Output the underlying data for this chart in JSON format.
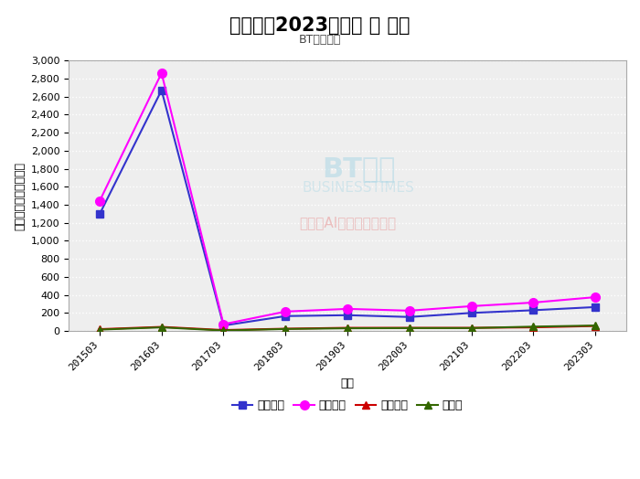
{
  "title": "黄山胶囊2023三季报 － 利润",
  "subtitle": "BT财经绘制",
  "xlabel": "项目",
  "ylabel": "数额（人民币百万元）",
  "watermark_bt": "BT财经",
  "watermark_en": "BUSINESSTIMES",
  "watermark_ai": "内容由AI生成，仅供参考",
  "x_labels": [
    "201503",
    "201603",
    "201703",
    "201803",
    "201903",
    "202003",
    "202103",
    "202203",
    "202303"
  ],
  "series": [
    {
      "name": "营业成本",
      "values": [
        1295,
        2670,
        60,
        165,
        175,
        155,
        200,
        230,
        265
      ],
      "color": "#3333cc",
      "marker": "s",
      "linewidth": 1.5,
      "markersize": 6
    },
    {
      "name": "营业收入",
      "values": [
        1440,
        2860,
        75,
        215,
        245,
        225,
        275,
        315,
        375
      ],
      "color": "#ff00ff",
      "marker": "o",
      "linewidth": 1.5,
      "markersize": 7
    },
    {
      "name": "营业利润",
      "values": [
        20,
        45,
        10,
        25,
        35,
        35,
        35,
        40,
        55
      ],
      "color": "#cc0000",
      "marker": "^",
      "linewidth": 1.5,
      "markersize": 6
    },
    {
      "name": "净利润",
      "values": [
        15,
        40,
        5,
        22,
        30,
        32,
        32,
        48,
        60
      ],
      "color": "#336600",
      "marker": "^",
      "linewidth": 1.5,
      "markersize": 6
    }
  ],
  "ylim": [
    0,
    3000
  ],
  "yticks": [
    0,
    200,
    400,
    600,
    800,
    1000,
    1200,
    1400,
    1600,
    1800,
    2000,
    2200,
    2400,
    2600,
    2800,
    3000
  ],
  "bg_color": "#ffffff",
  "plot_bg_color": "#eeeeee",
  "grid_color": "#ffffff",
  "title_fontsize": 15,
  "subtitle_fontsize": 9,
  "axis_label_fontsize": 9,
  "tick_fontsize": 8,
  "legend_fontsize": 9
}
